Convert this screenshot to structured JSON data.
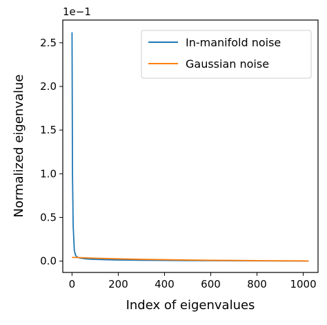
{
  "chart_data": {
    "type": "line",
    "xlabel": "Index of eigenvalues",
    "ylabel": "Normalized eigenvalue",
    "offset_text": "1e−1",
    "xlim": [
      -40,
      1064
    ],
    "ylim": [
      -0.013,
      0.276
    ],
    "xticks": [
      0,
      200,
      400,
      600,
      800,
      1000
    ],
    "yticks": [
      0.0,
      0.05,
      0.1,
      0.15,
      0.2,
      0.25
    ],
    "ytick_labels": [
      "0.0",
      "0.5",
      "1.0",
      "1.5",
      "2.0",
      "2.5"
    ],
    "legend_position": "upper right",
    "series": [
      {
        "name": "In-manifold noise",
        "color": "#1f77b4",
        "x": [
          0,
          2,
          5,
          10,
          15,
          20,
          30,
          40,
          60,
          80,
          100,
          150,
          200,
          300,
          400,
          500,
          600,
          700,
          800,
          900,
          1000,
          1023
        ],
        "y": [
          0.262,
          0.1,
          0.04,
          0.012,
          0.007,
          0.005,
          0.0038,
          0.0032,
          0.0026,
          0.0022,
          0.002,
          0.0016,
          0.0013,
          0.001,
          0.0008,
          0.0006,
          0.0005,
          0.0004,
          0.0003,
          0.0002,
          0.0001,
          0.0001
        ]
      },
      {
        "name": "Gaussian noise",
        "color": "#ff7f0e",
        "x": [
          0,
          20,
          50,
          100,
          200,
          300,
          400,
          500,
          600,
          700,
          800,
          900,
          1000,
          1023
        ],
        "y": [
          0.0042,
          0.0041,
          0.0038,
          0.0033,
          0.0026,
          0.002,
          0.0016,
          0.0012,
          0.0009,
          0.0007,
          0.0005,
          0.0003,
          0.0002,
          0.0001
        ]
      }
    ]
  }
}
